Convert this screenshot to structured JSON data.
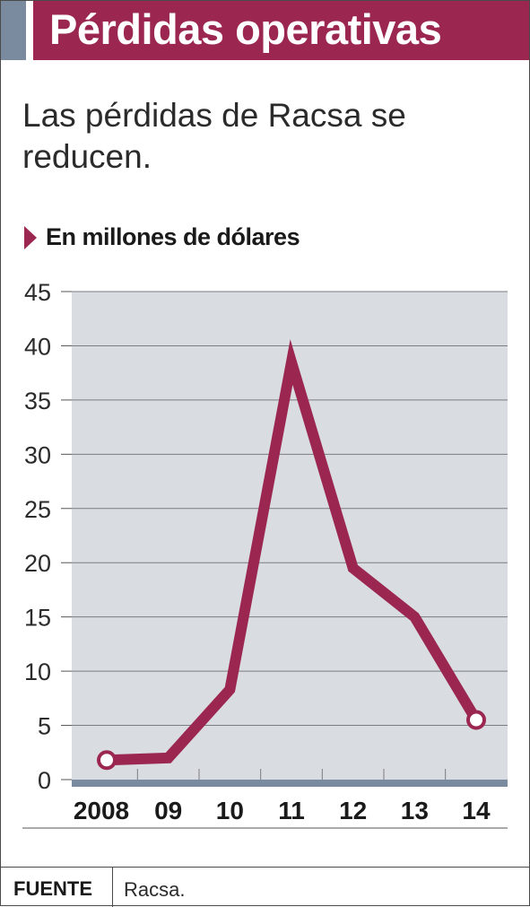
{
  "header": {
    "title": "Pérdidas operativas",
    "subtitle": "Las pérdidas de Racsa se reducen.",
    "unit_label": "En millones de dólares"
  },
  "colors": {
    "accent": "#9b2750",
    "plot_background": "#d9dce1",
    "title_accent": "#7b8b9f",
    "baseline": "#7b8b9f"
  },
  "chart_data": {
    "type": "line",
    "categories": [
      "2008",
      "09",
      "10",
      "11",
      "12",
      "13",
      "14"
    ],
    "values": [
      1.8,
      2.0,
      8.3,
      38.5,
      19.5,
      15.0,
      5.5
    ],
    "ylim": [
      0,
      45
    ],
    "yticks": [
      "0",
      "5",
      "10",
      "15",
      "20",
      "25",
      "30",
      "35",
      "40",
      "45"
    ],
    "grid": true,
    "markers_on": [
      0,
      6
    ]
  },
  "footer": {
    "label": "FUENTE",
    "source": "Racsa."
  }
}
